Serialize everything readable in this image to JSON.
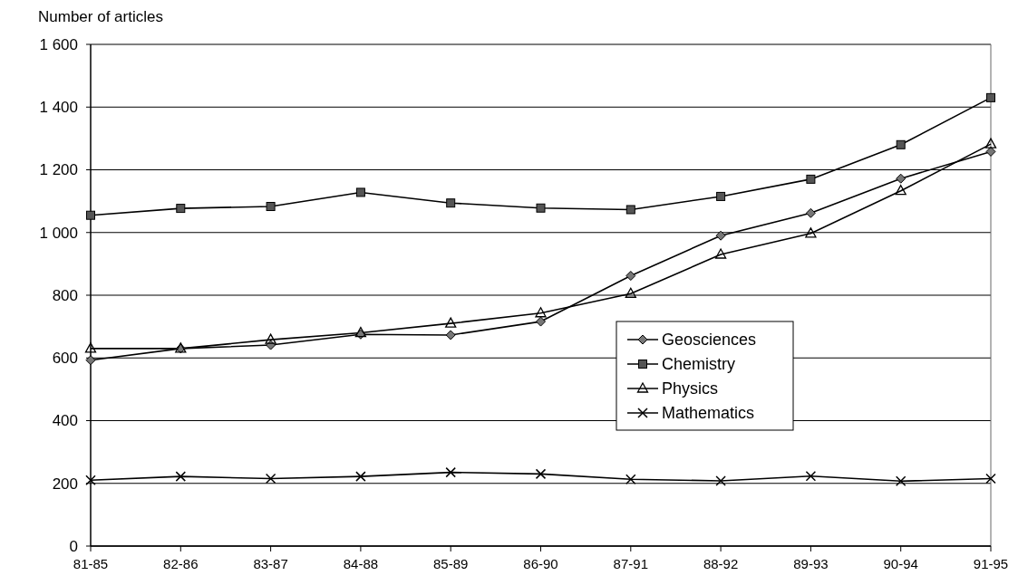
{
  "chart_data": {
    "type": "line",
    "ylabel": "Number of articles",
    "categories": [
      "81-85",
      "82-86",
      "83-87",
      "84-88",
      "85-89",
      "86-90",
      "87-91",
      "88-92",
      "89-93",
      "90-94",
      "91-95"
    ],
    "series": [
      {
        "name": "Geosciences",
        "color": "#000000",
        "marker": "diamond",
        "values": [
          593,
          630,
          641,
          675,
          673,
          716,
          862,
          990,
          1062,
          1172,
          1258
        ]
      },
      {
        "name": "Chemistry",
        "color": "#000000",
        "marker": "square",
        "values": [
          1055,
          1077,
          1083,
          1128,
          1094,
          1078,
          1073,
          1115,
          1170,
          1280,
          1430
        ]
      },
      {
        "name": "Physics",
        "color": "#000000",
        "marker": "triangle",
        "values": [
          630,
          630,
          658,
          680,
          710,
          743,
          805,
          930,
          997,
          1133,
          1282
        ]
      },
      {
        "name": "Mathematics",
        "color": "#000000",
        "marker": "cross",
        "values": [
          210,
          222,
          215,
          222,
          235,
          230,
          213,
          208,
          223,
          207,
          215
        ]
      }
    ],
    "ylim": [
      0,
      1600
    ],
    "yticks": [
      0,
      200,
      400,
      600,
      800,
      {
        "value": 1000,
        "label": "1 000"
      },
      {
        "value": 1200,
        "label": "1 200"
      },
      {
        "value": 1400,
        "label": "1 400"
      },
      {
        "value": 1600,
        "label": "1 600"
      }
    ],
    "grid": "y",
    "legend": "right",
    "line_style": "solid"
  }
}
